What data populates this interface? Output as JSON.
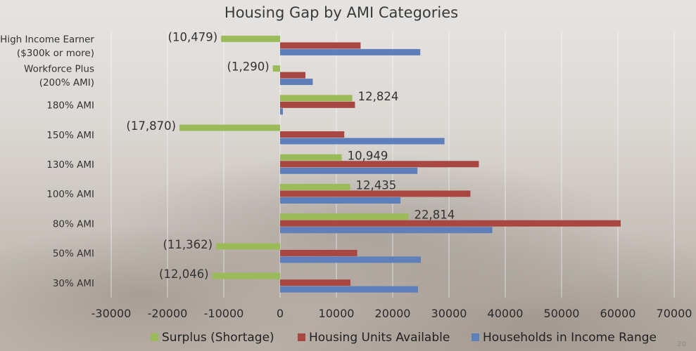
{
  "chart_data": {
    "type": "bar",
    "orientation": "horizontal",
    "title": "Housing Gap by AMI Categories",
    "categories": [
      [
        "High Income Earner",
        "($300k or more)"
      ],
      [
        "Workforce Plus",
        "(200% AMI)"
      ],
      [
        "180% AMI"
      ],
      [
        "150% AMI"
      ],
      [
        "130% AMI"
      ],
      [
        "100% AMI"
      ],
      [
        "80% AMI"
      ],
      [
        "50% AMI"
      ],
      [
        "30% AMI"
      ]
    ],
    "series": [
      {
        "name": "Surplus (Shortage)",
        "color": "#9bbb59",
        "values": [
          -10479,
          -1290,
          12824,
          -17870,
          10949,
          12435,
          22814,
          -11362,
          -12046
        ],
        "data_labels": [
          "(10,479)",
          "(1,290)",
          "12,824",
          "(17,870)",
          "10,949",
          "12,435",
          "22,814",
          "(11,362)",
          "(12,046)"
        ]
      },
      {
        "name": "Housing Units Available",
        "color": "#a84641",
        "values": [
          14300,
          4500,
          13300,
          11400,
          35300,
          33800,
          60500,
          13700,
          12500
        ]
      },
      {
        "name": "Households in Income Range",
        "color": "#5f7fba",
        "values": [
          24900,
          5800,
          500,
          29200,
          24400,
          21400,
          37700,
          25000,
          24500
        ]
      }
    ],
    "xlim": [
      -30000,
      70000
    ],
    "xticks": [
      -30000,
      -20000,
      -10000,
      0,
      10000,
      20000,
      30000,
      40000,
      50000,
      60000,
      70000
    ],
    "xtick_labels": [
      "-30000",
      "-20000",
      "-10000",
      "0",
      "10000",
      "20000",
      "30000",
      "40000",
      "50000",
      "60000",
      "70000"
    ],
    "grid": true,
    "legend_position": "bottom"
  },
  "page_number": "20"
}
